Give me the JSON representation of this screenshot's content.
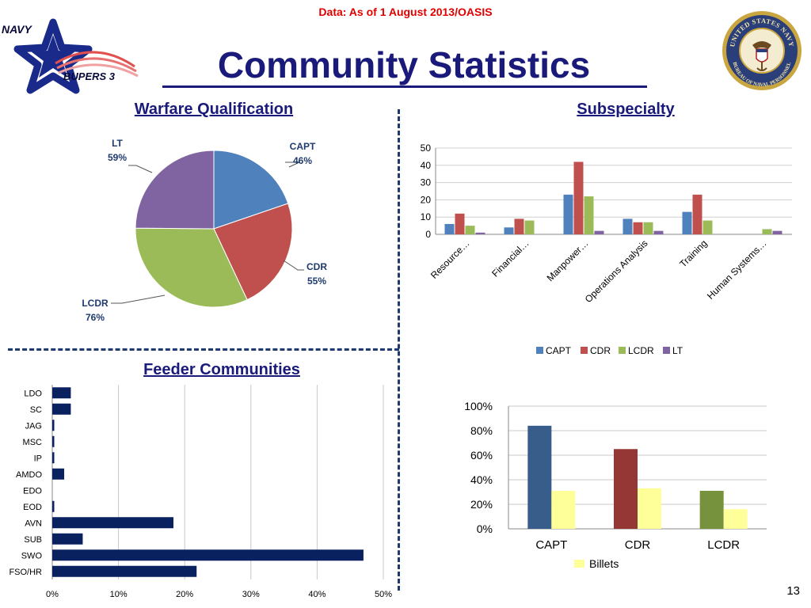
{
  "header": {
    "source_note": "Data: As of 1 August 2013/OASIS",
    "title": "Community Statistics",
    "logo_navy": "NAVY",
    "logo_bupers": "BUPERS 3",
    "seal_ring_top": "UNITED STATES NAVY",
    "seal_ring_bottom": "BUREAU OF NAVAL PERSONNEL"
  },
  "sections": {
    "warfare": "Warfare Qualification",
    "subspecialty": "Subspecialty",
    "feeder": "Feeder Communities"
  },
  "page_number": "13",
  "colors": {
    "capt": "#4f81bd",
    "cdr": "#c0504d",
    "lcdr": "#9bbb59",
    "lt": "#8064a2",
    "feeder": "#0a2160",
    "billets": "#ffff99",
    "navy_text": "#1a1a7a",
    "source_red": "#e00000"
  },
  "chart_data": [
    {
      "id": "warfare",
      "type": "pie",
      "title": "Warfare Qualification",
      "slices": [
        {
          "label": "CAPT",
          "pct_label": "46%",
          "share": 0.198
        },
        {
          "label": "CDR",
          "pct_label": "55%",
          "share": 0.233
        },
        {
          "label": "LCDR",
          "pct_label": "76%",
          "share": 0.322
        },
        {
          "label": "LT",
          "pct_label": "59%",
          "share": 0.249
        }
      ]
    },
    {
      "id": "subspecialty",
      "type": "bar",
      "title": "Subspecialty",
      "categories": [
        "Resource…",
        "Financial…",
        "Manpower…",
        "Operations Analysis",
        "Training",
        "Human Systems…"
      ],
      "series": [
        {
          "name": "CAPT",
          "values": [
            6,
            4,
            23,
            9,
            13,
            0
          ]
        },
        {
          "name": "CDR",
          "values": [
            12,
            9,
            42,
            7,
            23,
            0
          ]
        },
        {
          "name": "LCDR",
          "values": [
            5,
            8,
            22,
            7,
            8,
            3
          ]
        },
        {
          "name": "LT",
          "values": [
            1,
            0,
            2,
            2,
            0,
            2
          ]
        }
      ],
      "ylim": [
        0,
        50
      ],
      "yticks": [
        "0",
        "10",
        "20",
        "30",
        "40",
        "50"
      ],
      "grid": true,
      "legend": "bottom"
    },
    {
      "id": "feeder",
      "type": "bar",
      "orientation": "horizontal",
      "title": "Feeder Communities",
      "categories": [
        "LDO",
        "SC",
        "JAG",
        "MSC",
        "IP",
        "AMDO",
        "EDO",
        "EOD",
        "AVN",
        "SUB",
        "SWO",
        "FSO/HR"
      ],
      "values": [
        2.8,
        2.8,
        0.3,
        0.3,
        0.3,
        1.8,
        0,
        0.3,
        18.3,
        4.6,
        47,
        21.8
      ],
      "xlim": [
        0,
        50
      ],
      "xticks": [
        "0%",
        "10%",
        "20%",
        "30%",
        "40%",
        "50%"
      ],
      "grid": true
    },
    {
      "id": "billets",
      "type": "bar",
      "categories": [
        "CAPT",
        "CDR",
        "LCDR"
      ],
      "series": [
        {
          "values": [
            84,
            65,
            31
          ]
        },
        {
          "name": "Billets",
          "values": [
            31,
            33,
            16
          ]
        }
      ],
      "ylim": [
        0,
        100
      ],
      "yticks": [
        "0%",
        "20%",
        "40%",
        "60%",
        "80%",
        "100%"
      ],
      "grid": true,
      "legend": "bottom"
    }
  ]
}
